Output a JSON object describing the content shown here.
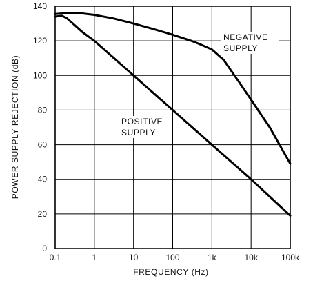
{
  "chart_data": {
    "type": "line",
    "xscale": "log",
    "xlim": [
      0.1,
      100000
    ],
    "ylim": [
      0,
      140
    ],
    "xticks": [
      0.1,
      1,
      10,
      100,
      1000,
      10000,
      100000
    ],
    "xtick_labels": [
      "0.1",
      "1",
      "10",
      "100",
      "1k",
      "10k",
      "100k"
    ],
    "yticks": [
      0,
      20,
      40,
      60,
      80,
      100,
      120,
      140
    ],
    "ytick_labels": [
      "0",
      "20",
      "40",
      "60",
      "80",
      "100",
      "120",
      "140"
    ],
    "xlabel": "FREQUENCY (Hz)",
    "ylabel": "POWER SUPPLY REJECTION (dB)",
    "grid": true,
    "colors": {
      "line": "#000000",
      "grid": "#000000",
      "background": "#ffffff"
    },
    "annotations": [
      {
        "id": "negative",
        "lines": [
          "NEGATIVE",
          "SUPPLY"
        ]
      },
      {
        "id": "positive",
        "lines": [
          "POSITIVE",
          "SUPPLY"
        ]
      }
    ],
    "series": [
      {
        "id": "negative",
        "x": [
          0.1,
          0.2,
          0.5,
          1,
          3,
          10,
          30,
          100,
          300,
          500,
          1000,
          2000,
          5000,
          10000,
          30000,
          100000
        ],
        "y": [
          135.5,
          136,
          135.8,
          135,
          133,
          130,
          127,
          123.5,
          120,
          118,
          115,
          109,
          96,
          86,
          70,
          49
        ]
      },
      {
        "id": "positive",
        "x": [
          0.1,
          0.15,
          0.2,
          0.3,
          0.5,
          1,
          10,
          100,
          1000,
          10000,
          100000
        ],
        "y": [
          134,
          134.5,
          133,
          129.5,
          125,
          120,
          100,
          80,
          60,
          40,
          19
        ]
      }
    ]
  }
}
